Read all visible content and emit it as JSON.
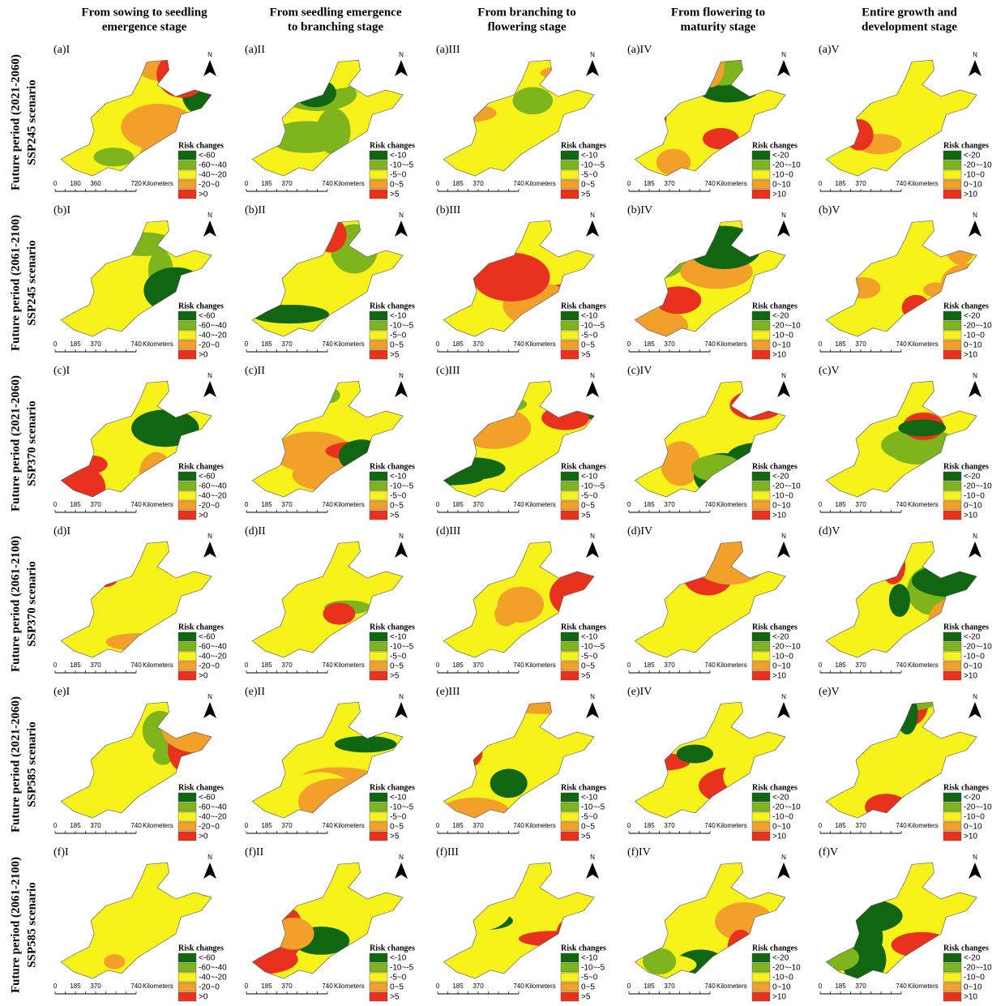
{
  "headers": [
    [
      "From sowing to seedling",
      "emergence stage"
    ],
    [
      "From seedling emergence",
      "to branching stage"
    ],
    [
      "From branching to",
      "flowering stage"
    ],
    [
      "From flowering to",
      "maturity stage"
    ],
    [
      "Entire growth and",
      "development stage"
    ]
  ],
  "rows": [
    [
      "Future period (2021-2060)",
      "SSP245 scenario"
    ],
    [
      "Future period (2061-2100)",
      "SSP245 scenario"
    ],
    [
      "Future period (2021-2060)",
      "SSP370 scenario"
    ],
    [
      "Future period (2061-2100)",
      "SSP370 scenario"
    ],
    [
      "Future period (2021-2060)",
      "SSP585 scenario"
    ],
    [
      "Future period (2061-2100)",
      "SSP585 scenario"
    ]
  ],
  "legend_title": "Risk changes",
  "north": "N",
  "scale_unit": "Kilometers",
  "legends": [
    [
      "<-60",
      "-60~-40",
      "-40~-20",
      "-20~0",
      ">0"
    ],
    [
      "<-10",
      "-10~-5",
      "-5~0",
      "0~5",
      ">5"
    ],
    [
      "<-10",
      "-10~-5",
      "-5~0",
      "0~5",
      ">5"
    ],
    [
      "<-20",
      "-20~-10",
      "-10~0",
      "0~10",
      ">10"
    ],
    [
      "<-20",
      "-20~-10",
      "-10~0",
      "0~10",
      ">10"
    ]
  ],
  "panels": [
    [
      {
        "label": "(a)I",
        "scale": [
          0,
          180,
          360,
          720
        ]
      },
      {
        "label": "(a)II",
        "scale": [
          0,
          185,
          370,
          740
        ]
      },
      {
        "label": "(a)III",
        "scale": [
          0,
          185,
          370,
          740
        ]
      },
      {
        "label": "(a)IV",
        "scale": [
          0,
          185,
          370,
          740
        ]
      },
      {
        "label": "(a)V",
        "scale": [
          0,
          185,
          370,
          740
        ]
      }
    ],
    [
      {
        "label": "(b)I",
        "scale": [
          0,
          185,
          370,
          740
        ]
      },
      {
        "label": "(b)II",
        "scale": [
          0,
          185,
          370,
          740
        ]
      },
      {
        "label": "(b)III",
        "scale": [
          0,
          185,
          370,
          740
        ]
      },
      {
        "label": "(b)IV",
        "scale": [
          0,
          185,
          370,
          740
        ]
      },
      {
        "label": "(b)V",
        "scale": [
          0,
          185,
          370,
          740
        ]
      }
    ],
    [
      {
        "label": "(c)I",
        "scale": [
          0,
          185,
          370,
          740
        ]
      },
      {
        "label": "(c)II",
        "scale": [
          0,
          185,
          370,
          740
        ]
      },
      {
        "label": "(c)III",
        "scale": [
          0,
          185,
          370,
          740
        ]
      },
      {
        "label": "(c)IV",
        "scale": [
          0,
          185,
          370,
          740
        ]
      },
      {
        "label": "(c)V",
        "scale": [
          0,
          185,
          370,
          740
        ]
      }
    ],
    [
      {
        "label": "(d)I",
        "scale": [
          0,
          185,
          370,
          740
        ]
      },
      {
        "label": "(d)II",
        "scale": [
          0,
          185,
          370,
          740
        ]
      },
      {
        "label": "(d)III",
        "scale": [
          0,
          185,
          370,
          740
        ]
      },
      {
        "label": "(d)IV",
        "scale": [
          0,
          185,
          370,
          740
        ]
      },
      {
        "label": "(d)V",
        "scale": [
          0,
          185,
          370,
          740
        ]
      }
    ],
    [
      {
        "label": "(e)I",
        "scale": [
          0,
          185,
          370,
          740
        ]
      },
      {
        "label": "(e)II",
        "scale": [
          0,
          185,
          370,
          740
        ]
      },
      {
        "label": "(e)III",
        "scale": [
          0,
          185,
          370,
          740
        ]
      },
      {
        "label": "(e)IV",
        "scale": [
          0,
          185,
          370,
          740
        ]
      },
      {
        "label": "(e)V",
        "scale": [
          0,
          185,
          370,
          740
        ]
      }
    ],
    [
      {
        "label": "(f)I",
        "scale": [
          0,
          185,
          370,
          740
        ]
      },
      {
        "label": "(f)II",
        "scale": [
          0,
          185,
          370,
          740
        ]
      },
      {
        "label": "(f)III",
        "scale": [
          0,
          185,
          370,
          740
        ]
      },
      {
        "label": "(f)IV",
        "scale": [
          0,
          185,
          370,
          740
        ]
      },
      {
        "label": "(f)V",
        "scale": [
          0,
          185,
          370,
          740
        ]
      }
    ]
  ]
}
